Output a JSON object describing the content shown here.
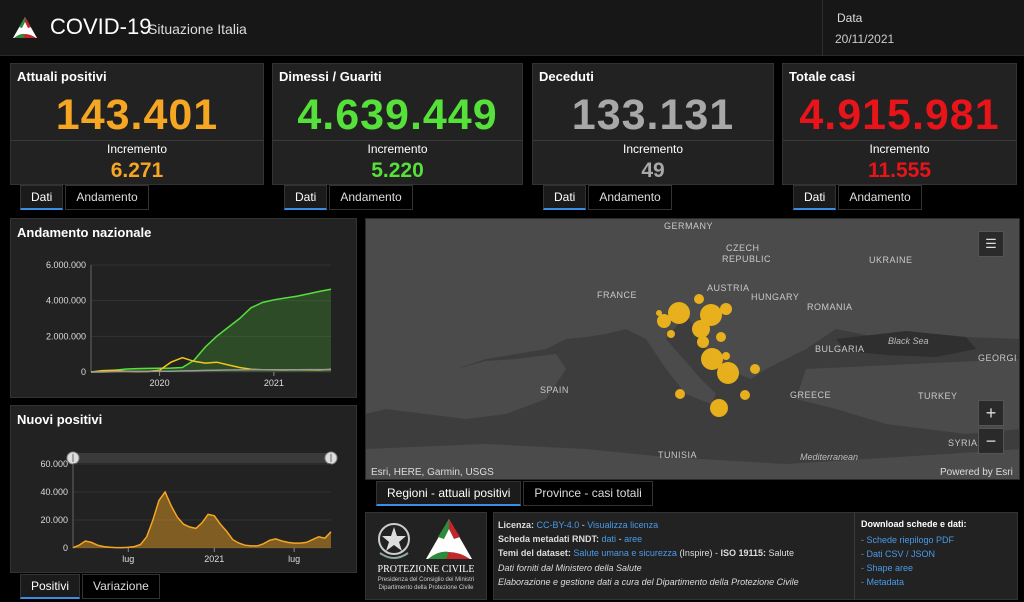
{
  "header": {
    "title": "COVID-19",
    "subtitle": "Situazione Italia",
    "date_label": "Data",
    "date_value": "20/11/2021"
  },
  "cards": [
    {
      "title": "Attuali positivi",
      "value": "143.401",
      "inc_label": "Incremento",
      "inc": "6.271",
      "color": "#f5a623"
    },
    {
      "title": "Dimessi / Guariti",
      "value": "4.639.449",
      "inc_label": "Incremento",
      "inc": "5.220",
      "color": "#56e03a"
    },
    {
      "title": "Deceduti",
      "value": "133.131",
      "inc_label": "Incremento",
      "inc": "49",
      "color": "#a8a8a8"
    },
    {
      "title": "Totale casi",
      "value": "4.915.981",
      "inc_label": "Incremento",
      "inc": "11.555",
      "color": "#e8141a"
    }
  ],
  "card_tabs": {
    "dati": "Dati",
    "andamento": "Andamento"
  },
  "panel_national": {
    "title": "Andamento nazionale"
  },
  "panel_new": {
    "title": "Nuovi positivi"
  },
  "bottom_tabs": {
    "positivi": "Positivi",
    "variazione": "Variazione"
  },
  "map": {
    "labels": {
      "germany": "GERMANY",
      "czech1": "CZECH",
      "czech2": "REPUBLIC",
      "ukraine": "UKRAINE",
      "france": "FRANCE",
      "austria": "AUSTRIA",
      "hungary": "HUNGARY",
      "romania": "ROMANIA",
      "bulgaria": "BULGARIA",
      "spain": "SPAIN",
      "greece": "GREECE",
      "turkey": "TURKEY",
      "tunisia": "TUNISIA",
      "syria": "SYRIA",
      "georgia": "GEORGI",
      "black_sea": "Black Sea",
      "mediterranean": "Mediterranean"
    },
    "attribution": "Esri, HERE, Garmin, USGS",
    "powered": "Powered by Esri",
    "zoom_in": "+",
    "zoom_out": "−",
    "tabs": {
      "regioni": "Regioni - attuali positivi",
      "province": "Province - casi totali"
    },
    "list_icon": "list-icon"
  },
  "footer": {
    "logo_line1": "PROTEZIONE CIVILE",
    "logo_line2": "Presidenza del Consiglio dei Ministri",
    "logo_line3": "Dipartimento della Protezione Civile",
    "licenza_label": "Licenza:",
    "licenza_link1": "CC-BY-4.0",
    "licenza_sep": " - ",
    "licenza_link2": "Visualizza licenza",
    "scheda_label": "Scheda metadati RNDT:",
    "scheda_link1": "dati",
    "scheda_sep": " - ",
    "scheda_link2": "aree",
    "temi_label": "Temi del dataset:",
    "temi_link": "Salute umana e sicurezza",
    "temi_rest": " (Inspire) - ",
    "iso_label": "ISO 19115:",
    "iso_val": " Salute",
    "dati_forniti": "Dati forniti dal Ministero della Salute",
    "elaborazione": "Elaborazione e gestione dati a cura del Dipartimento della Protezione Civile",
    "download_title": "Download schede e dati:",
    "downloads": [
      "- Schede riepilogo PDF",
      "- Dati CSV / JSON",
      "- Shape aree",
      "- Metadata"
    ]
  },
  "chart_data": [
    {
      "type": "area",
      "title": "Andamento nazionale",
      "x_ticks": [
        "2020",
        "2021"
      ],
      "y_ticks": [
        "0",
        "2.000.000",
        "4.000.000",
        "6.000.000"
      ],
      "ylim": [
        0,
        6000000
      ],
      "x_range": [
        0,
        21
      ],
      "series": [
        {
          "x": [
            0,
            1,
            2,
            3,
            4,
            5,
            6,
            7,
            8,
            9,
            10,
            11,
            12,
            13,
            14,
            15,
            16,
            17,
            18,
            19,
            20,
            21
          ],
          "values": [
            0,
            20000,
            100000,
            160000,
            190000,
            200000,
            210000,
            220000,
            250000,
            650000,
            1400000,
            2000000,
            2500000,
            3000000,
            3600000,
            3900000,
            4050000,
            4150000,
            4250000,
            4380000,
            4520000,
            4640000
          ],
          "color": "#56e03a"
        },
        {
          "x": [
            0,
            1,
            2,
            3,
            4,
            5,
            6,
            7,
            8,
            9,
            10,
            11,
            12,
            13,
            14,
            15,
            16,
            17,
            18,
            19,
            20,
            21
          ],
          "values": [
            0,
            80000,
            100000,
            40000,
            20000,
            30000,
            100000,
            550000,
            800000,
            600000,
            500000,
            550000,
            400000,
            250000,
            150000,
            130000,
            120000,
            110000,
            125000,
            120000,
            110000,
            143000
          ],
          "color": "#f5c518"
        },
        {
          "x": [
            0,
            1,
            2,
            3,
            4,
            5,
            6,
            7,
            8,
            9,
            10,
            11,
            12,
            13,
            14,
            15,
            16,
            17,
            18,
            19,
            20,
            21
          ],
          "values": [
            0,
            2000,
            20000,
            30000,
            35000,
            36000,
            37000,
            45000,
            60000,
            75000,
            90000,
            100000,
            110000,
            120000,
            126000,
            128000,
            129000,
            130000,
            131000,
            132000,
            132500,
            133131
          ],
          "color": "#999999"
        }
      ]
    },
    {
      "type": "area",
      "title": "Nuovi positivi",
      "x_ticks": [
        "lug",
        "2021",
        "lug"
      ],
      "y_ticks": [
        "0",
        "20.000",
        "40.000",
        "60.000"
      ],
      "ylim": [
        0,
        60000
      ],
      "x_range": [
        0,
        21
      ],
      "series": [
        {
          "x": [
            0,
            0.5,
            1,
            1.5,
            2,
            2.5,
            3,
            3.5,
            4,
            4.5,
            5,
            5.5,
            6,
            6.5,
            7,
            7.5,
            8,
            8.5,
            9,
            9.5,
            10,
            10.5,
            11,
            11.5,
            12,
            12.5,
            13,
            13.5,
            14,
            14.5,
            15,
            15.5,
            16,
            16.5,
            17,
            17.5,
            18,
            18.5,
            19,
            19.5,
            20,
            20.5,
            21
          ],
          "values": [
            200,
            2000,
            5000,
            4000,
            2000,
            1000,
            500,
            300,
            300,
            500,
            1000,
            2500,
            8000,
            20000,
            34000,
            40000,
            30000,
            22000,
            17000,
            15000,
            14000,
            18000,
            24000,
            23000,
            17000,
            12000,
            6000,
            3500,
            2000,
            1500,
            1500,
            3000,
            5500,
            6500,
            5000,
            4000,
            3500,
            3500,
            4000,
            6000,
            8000,
            7000,
            11555
          ],
          "color": "#f5a623"
        }
      ],
      "slider": {
        "start": 0,
        "end": 1
      }
    }
  ]
}
